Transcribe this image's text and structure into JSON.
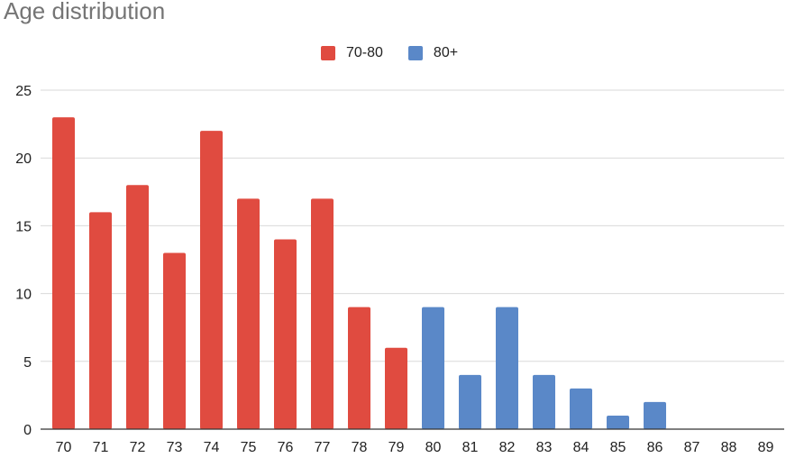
{
  "chart_data": {
    "type": "bar",
    "title": "Age distribution",
    "xlabel": "",
    "ylabel": "",
    "categories": [
      "70",
      "71",
      "72",
      "73",
      "74",
      "75",
      "76",
      "77",
      "78",
      "79",
      "80",
      "81",
      "82",
      "83",
      "84",
      "85",
      "86",
      "87",
      "88",
      "89"
    ],
    "series": [
      {
        "name": "70-80",
        "color": "#e04b40",
        "values": [
          23,
          16,
          18,
          13,
          22,
          17,
          14,
          17,
          9,
          6,
          null,
          null,
          null,
          null,
          null,
          null,
          null,
          null,
          null,
          null
        ]
      },
      {
        "name": "80+",
        "color": "#5a88c8",
        "values": [
          null,
          null,
          null,
          null,
          null,
          null,
          null,
          null,
          null,
          null,
          9,
          4,
          9,
          4,
          3,
          1,
          2,
          0,
          0,
          0
        ]
      }
    ],
    "ylim": [
      0,
      25
    ],
    "yticks": [
      0,
      5,
      10,
      15,
      20,
      25
    ],
    "grid": true,
    "legend_position": "top-center",
    "colors": {
      "grid": "#d9d9d9",
      "baseline": "#333333",
      "title": "#757575",
      "text": "#222222"
    }
  }
}
